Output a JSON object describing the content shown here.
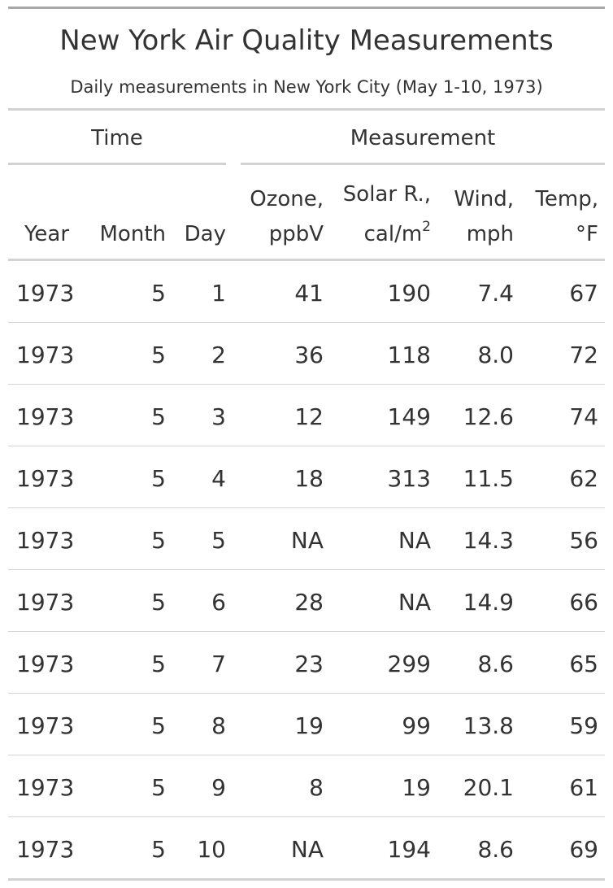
{
  "table": {
    "title": "New York Air Quality Measurements",
    "subtitle": "Daily measurements in New York City (May 1-10, 1973)",
    "spanners": {
      "time": "Time",
      "measurement": "Measurement"
    },
    "columns": {
      "year": "Year",
      "month": "Month",
      "day": "Day",
      "ozone_line1": "Ozone,",
      "ozone_line2": "ppbV",
      "solar_line1": "Solar R.,",
      "solar_line2": "cal/m",
      "solar_sup": "2",
      "wind_line1": "Wind,",
      "wind_line2": "mph",
      "temp_line1": "Temp,",
      "temp_line2": "°F"
    },
    "rows": [
      {
        "year": "1973",
        "month": "5",
        "day": "1",
        "ozone": "41",
        "solar": "190",
        "wind": "7.4",
        "temp": "67"
      },
      {
        "year": "1973",
        "month": "5",
        "day": "2",
        "ozone": "36",
        "solar": "118",
        "wind": "8.0",
        "temp": "72"
      },
      {
        "year": "1973",
        "month": "5",
        "day": "3",
        "ozone": "12",
        "solar": "149",
        "wind": "12.6",
        "temp": "74"
      },
      {
        "year": "1973",
        "month": "5",
        "day": "4",
        "ozone": "18",
        "solar": "313",
        "wind": "11.5",
        "temp": "62"
      },
      {
        "year": "1973",
        "month": "5",
        "day": "5",
        "ozone": "NA",
        "solar": "NA",
        "wind": "14.3",
        "temp": "56"
      },
      {
        "year": "1973",
        "month": "5",
        "day": "6",
        "ozone": "28",
        "solar": "NA",
        "wind": "14.9",
        "temp": "66"
      },
      {
        "year": "1973",
        "month": "5",
        "day": "7",
        "ozone": "23",
        "solar": "299",
        "wind": "8.6",
        "temp": "65"
      },
      {
        "year": "1973",
        "month": "5",
        "day": "8",
        "ozone": "19",
        "solar": "99",
        "wind": "13.8",
        "temp": "59"
      },
      {
        "year": "1973",
        "month": "5",
        "day": "9",
        "ozone": "8",
        "solar": "19",
        "wind": "20.1",
        "temp": "61"
      },
      {
        "year": "1973",
        "month": "5",
        "day": "10",
        "ozone": "NA",
        "solar": "194",
        "wind": "8.6",
        "temp": "69"
      }
    ]
  },
  "colors": {
    "text": "#333333",
    "rule_dark": "#a8a8a8",
    "rule_light": "#d3d3d3"
  }
}
